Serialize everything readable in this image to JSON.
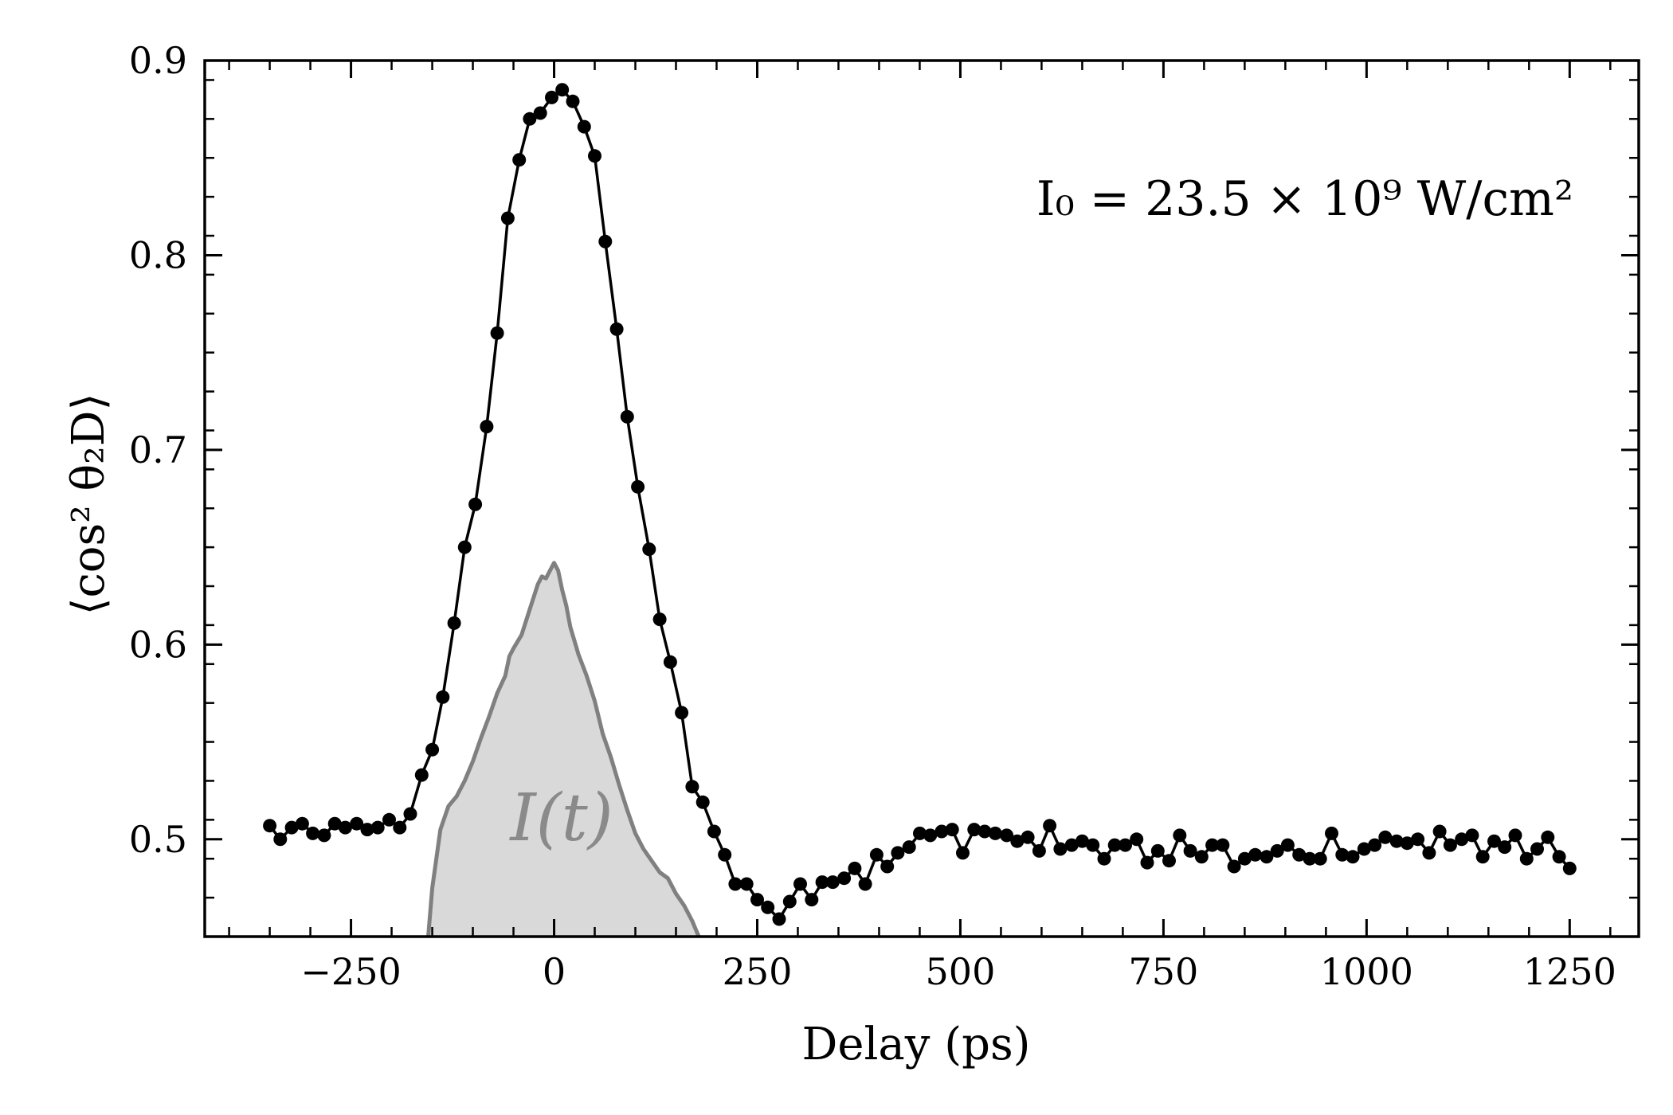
{
  "chart_data": {
    "type": "line",
    "xlabel": "Delay (ps)",
    "ylabel": "⟨cos² θ₂D⟩",
    "annotation": "I₀ = 23.5 × 10⁹ W/cm²",
    "pulse_label": "I(t)",
    "xlim": [
      -430,
      1335
    ],
    "ylim": [
      0.45,
      0.9
    ],
    "xticks": [
      -250,
      0,
      250,
      500,
      750,
      1000,
      1250
    ],
    "xtick_labels": [
      "−250",
      "0",
      "250",
      "500",
      "750",
      "1000",
      "1250"
    ],
    "xminor_step": 50,
    "yticks": [
      0.5,
      0.6,
      0.7,
      0.8,
      0.9
    ],
    "ytick_labels": [
      "0.5",
      "0.6",
      "0.7",
      "0.8",
      "0.9"
    ],
    "yminor_step": 0.02,
    "grid": false,
    "colors": {
      "data": "#000000",
      "pulse_line": "#808080",
      "pulse_fill": "#d9d9d9"
    },
    "series": [
      {
        "x": [
          -350,
          -337,
          -323,
          -310,
          -297,
          -283,
          -270,
          -257,
          -243,
          -230,
          -217,
          -203,
          -190,
          -177,
          -163,
          -150,
          -137,
          -123,
          -110,
          -97,
          -83,
          -70,
          -57,
          -43,
          -30,
          -17,
          -3,
          10,
          23,
          37,
          50,
          63,
          77,
          90,
          103,
          117,
          130,
          143,
          157,
          170,
          183,
          197,
          210,
          223,
          237,
          250,
          263,
          277,
          290,
          303,
          317,
          330,
          343,
          357,
          370,
          383,
          397,
          410,
          423,
          437,
          450,
          463,
          477,
          490,
          503,
          517,
          530,
          543,
          557,
          570,
          583,
          597,
          610,
          623,
          637,
          650,
          663,
          677,
          690,
          703,
          717,
          730,
          743,
          757,
          770,
          783,
          797,
          810,
          823,
          837,
          850,
          863,
          877,
          890,
          903,
          917,
          930,
          943,
          957,
          970,
          983,
          997,
          1010,
          1023,
          1037,
          1050,
          1063,
          1077,
          1090,
          1103,
          1117,
          1130,
          1143,
          1157,
          1170,
          1183,
          1197,
          1210,
          1223,
          1237,
          1250
        ],
        "y": [
          0.507,
          0.5,
          0.506,
          0.508,
          0.503,
          0.502,
          0.508,
          0.506,
          0.508,
          0.505,
          0.506,
          0.51,
          0.506,
          0.513,
          0.533,
          0.546,
          0.573,
          0.611,
          0.65,
          0.672,
          0.712,
          0.76,
          0.819,
          0.849,
          0.87,
          0.873,
          0.881,
          0.885,
          0.879,
          0.866,
          0.851,
          0.807,
          0.762,
          0.717,
          0.681,
          0.649,
          0.613,
          0.591,
          0.565,
          0.527,
          0.519,
          0.504,
          0.492,
          0.477,
          0.477,
          0.469,
          0.465,
          0.459,
          0.468,
          0.477,
          0.469,
          0.478,
          0.478,
          0.48,
          0.485,
          0.477,
          0.492,
          0.486,
          0.493,
          0.496,
          0.503,
          0.502,
          0.504,
          0.505,
          0.493,
          0.505,
          0.504,
          0.503,
          0.502,
          0.499,
          0.501,
          0.494,
          0.507,
          0.495,
          0.497,
          0.499,
          0.497,
          0.49,
          0.497,
          0.497,
          0.5,
          0.488,
          0.494,
          0.489,
          0.502,
          0.494,
          0.491,
          0.497,
          0.497,
          0.486,
          0.49,
          0.492,
          0.491,
          0.494,
          0.497,
          0.492,
          0.49,
          0.49,
          0.503,
          0.492,
          0.491,
          0.495,
          0.497,
          0.501,
          0.499,
          0.498,
          0.5,
          0.493,
          0.504,
          0.497,
          0.5,
          0.502,
          0.491,
          0.499,
          0.496,
          0.502,
          0.49,
          0.495,
          0.501,
          0.491,
          0.485
        ]
      }
    ],
    "pulse": {
      "x": [
        -155,
        -150,
        -140,
        -130,
        -120,
        -110,
        -100,
        -90,
        -80,
        -70,
        -60,
        -55,
        -50,
        -40,
        -30,
        -20,
        -15,
        -10,
        -5,
        0,
        5,
        10,
        15,
        20,
        30,
        40,
        50,
        60,
        70,
        80,
        90,
        100,
        110,
        120,
        130,
        140,
        150,
        160,
        170,
        178
      ],
      "y": [
        0.45,
        0.475,
        0.505,
        0.517,
        0.522,
        0.53,
        0.54,
        0.552,
        0.563,
        0.575,
        0.584,
        0.594,
        0.598,
        0.605,
        0.618,
        0.631,
        0.635,
        0.634,
        0.638,
        0.642,
        0.638,
        0.628,
        0.62,
        0.609,
        0.595,
        0.584,
        0.571,
        0.554,
        0.542,
        0.528,
        0.515,
        0.503,
        0.495,
        0.489,
        0.483,
        0.48,
        0.472,
        0.466,
        0.458,
        0.45
      ]
    }
  }
}
